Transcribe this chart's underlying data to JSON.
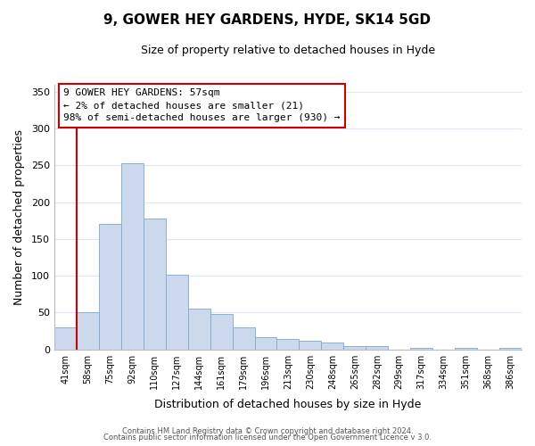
{
  "title": "9, GOWER HEY GARDENS, HYDE, SK14 5GD",
  "subtitle": "Size of property relative to detached houses in Hyde",
  "xlabel": "Distribution of detached houses by size in Hyde",
  "ylabel": "Number of detached properties",
  "bar_color": "#ccd9ed",
  "bar_edge_color": "#7fa8cc",
  "categories": [
    "41sqm",
    "58sqm",
    "75sqm",
    "92sqm",
    "110sqm",
    "127sqm",
    "144sqm",
    "161sqm",
    "179sqm",
    "196sqm",
    "213sqm",
    "230sqm",
    "248sqm",
    "265sqm",
    "282sqm",
    "299sqm",
    "317sqm",
    "334sqm",
    "351sqm",
    "368sqm",
    "386sqm"
  ],
  "values": [
    30,
    50,
    170,
    253,
    178,
    102,
    55,
    48,
    30,
    17,
    14,
    12,
    9,
    5,
    4,
    0,
    2,
    0,
    2,
    0,
    2
  ],
  "ylim": [
    0,
    360
  ],
  "yticks": [
    0,
    50,
    100,
    150,
    200,
    250,
    300,
    350
  ],
  "annotation_box_text": "9 GOWER HEY GARDENS: 57sqm\n← 2% of detached houses are smaller (21)\n98% of semi-detached houses are larger (930) →",
  "vline_color": "#cc0000",
  "footer_line1": "Contains HM Land Registry data © Crown copyright and database right 2024.",
  "footer_line2": "Contains public sector information licensed under the Open Government Licence v 3.0.",
  "background_color": "#ffffff",
  "grid_color": "#dce8f5"
}
